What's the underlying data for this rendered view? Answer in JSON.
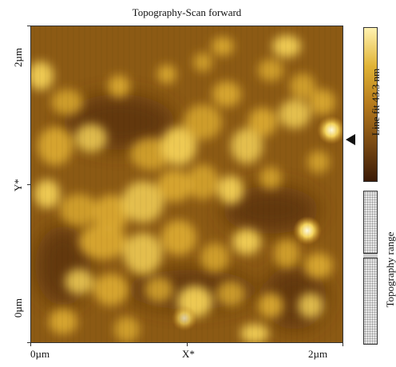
{
  "title": "Topography-Scan forward",
  "y_axis": {
    "label": "Y*",
    "top_tick": "2µm",
    "bottom_tick": "0µm"
  },
  "x_axis": {
    "label": "X*",
    "left_tick": "0µm",
    "right_tick": "2µm"
  },
  "colorbar": {
    "label": "Line fit 43.3 nm",
    "colors": [
      "#3a1a06",
      "#7a4a12",
      "#b57a1c",
      "#e0b335",
      "#fff2b0"
    ]
  },
  "range_control": {
    "label": "Topography range"
  },
  "image": {
    "base_color": "#8c5a14",
    "highlight_color": "#f2cf55"
  }
}
